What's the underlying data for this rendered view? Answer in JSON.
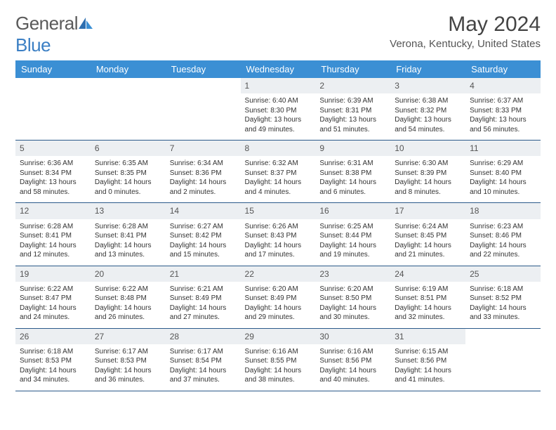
{
  "brand": {
    "general": "General",
    "blue": "Blue"
  },
  "title": "May 2024",
  "location": "Verona, Kentucky, United States",
  "colors": {
    "header_bg": "#3b8fd4",
    "header_text": "#ffffff",
    "daynum_bg": "#eceff2",
    "rule": "#2b5a8a",
    "logo_blue": "#3b7fc4"
  },
  "daysOfWeek": [
    "Sunday",
    "Monday",
    "Tuesday",
    "Wednesday",
    "Thursday",
    "Friday",
    "Saturday"
  ],
  "weeks": [
    [
      null,
      null,
      null,
      {
        "n": "1",
        "sr": "Sunrise: 6:40 AM",
        "ss": "Sunset: 8:30 PM",
        "d1": "Daylight: 13 hours",
        "d2": "and 49 minutes."
      },
      {
        "n": "2",
        "sr": "Sunrise: 6:39 AM",
        "ss": "Sunset: 8:31 PM",
        "d1": "Daylight: 13 hours",
        "d2": "and 51 minutes."
      },
      {
        "n": "3",
        "sr": "Sunrise: 6:38 AM",
        "ss": "Sunset: 8:32 PM",
        "d1": "Daylight: 13 hours",
        "d2": "and 54 minutes."
      },
      {
        "n": "4",
        "sr": "Sunrise: 6:37 AM",
        "ss": "Sunset: 8:33 PM",
        "d1": "Daylight: 13 hours",
        "d2": "and 56 minutes."
      }
    ],
    [
      {
        "n": "5",
        "sr": "Sunrise: 6:36 AM",
        "ss": "Sunset: 8:34 PM",
        "d1": "Daylight: 13 hours",
        "d2": "and 58 minutes."
      },
      {
        "n": "6",
        "sr": "Sunrise: 6:35 AM",
        "ss": "Sunset: 8:35 PM",
        "d1": "Daylight: 14 hours",
        "d2": "and 0 minutes."
      },
      {
        "n": "7",
        "sr": "Sunrise: 6:34 AM",
        "ss": "Sunset: 8:36 PM",
        "d1": "Daylight: 14 hours",
        "d2": "and 2 minutes."
      },
      {
        "n": "8",
        "sr": "Sunrise: 6:32 AM",
        "ss": "Sunset: 8:37 PM",
        "d1": "Daylight: 14 hours",
        "d2": "and 4 minutes."
      },
      {
        "n": "9",
        "sr": "Sunrise: 6:31 AM",
        "ss": "Sunset: 8:38 PM",
        "d1": "Daylight: 14 hours",
        "d2": "and 6 minutes."
      },
      {
        "n": "10",
        "sr": "Sunrise: 6:30 AM",
        "ss": "Sunset: 8:39 PM",
        "d1": "Daylight: 14 hours",
        "d2": "and 8 minutes."
      },
      {
        "n": "11",
        "sr": "Sunrise: 6:29 AM",
        "ss": "Sunset: 8:40 PM",
        "d1": "Daylight: 14 hours",
        "d2": "and 10 minutes."
      }
    ],
    [
      {
        "n": "12",
        "sr": "Sunrise: 6:28 AM",
        "ss": "Sunset: 8:41 PM",
        "d1": "Daylight: 14 hours",
        "d2": "and 12 minutes."
      },
      {
        "n": "13",
        "sr": "Sunrise: 6:28 AM",
        "ss": "Sunset: 8:41 PM",
        "d1": "Daylight: 14 hours",
        "d2": "and 13 minutes."
      },
      {
        "n": "14",
        "sr": "Sunrise: 6:27 AM",
        "ss": "Sunset: 8:42 PM",
        "d1": "Daylight: 14 hours",
        "d2": "and 15 minutes."
      },
      {
        "n": "15",
        "sr": "Sunrise: 6:26 AM",
        "ss": "Sunset: 8:43 PM",
        "d1": "Daylight: 14 hours",
        "d2": "and 17 minutes."
      },
      {
        "n": "16",
        "sr": "Sunrise: 6:25 AM",
        "ss": "Sunset: 8:44 PM",
        "d1": "Daylight: 14 hours",
        "d2": "and 19 minutes."
      },
      {
        "n": "17",
        "sr": "Sunrise: 6:24 AM",
        "ss": "Sunset: 8:45 PM",
        "d1": "Daylight: 14 hours",
        "d2": "and 21 minutes."
      },
      {
        "n": "18",
        "sr": "Sunrise: 6:23 AM",
        "ss": "Sunset: 8:46 PM",
        "d1": "Daylight: 14 hours",
        "d2": "and 22 minutes."
      }
    ],
    [
      {
        "n": "19",
        "sr": "Sunrise: 6:22 AM",
        "ss": "Sunset: 8:47 PM",
        "d1": "Daylight: 14 hours",
        "d2": "and 24 minutes."
      },
      {
        "n": "20",
        "sr": "Sunrise: 6:22 AM",
        "ss": "Sunset: 8:48 PM",
        "d1": "Daylight: 14 hours",
        "d2": "and 26 minutes."
      },
      {
        "n": "21",
        "sr": "Sunrise: 6:21 AM",
        "ss": "Sunset: 8:49 PM",
        "d1": "Daylight: 14 hours",
        "d2": "and 27 minutes."
      },
      {
        "n": "22",
        "sr": "Sunrise: 6:20 AM",
        "ss": "Sunset: 8:49 PM",
        "d1": "Daylight: 14 hours",
        "d2": "and 29 minutes."
      },
      {
        "n": "23",
        "sr": "Sunrise: 6:20 AM",
        "ss": "Sunset: 8:50 PM",
        "d1": "Daylight: 14 hours",
        "d2": "and 30 minutes."
      },
      {
        "n": "24",
        "sr": "Sunrise: 6:19 AM",
        "ss": "Sunset: 8:51 PM",
        "d1": "Daylight: 14 hours",
        "d2": "and 32 minutes."
      },
      {
        "n": "25",
        "sr": "Sunrise: 6:18 AM",
        "ss": "Sunset: 8:52 PM",
        "d1": "Daylight: 14 hours",
        "d2": "and 33 minutes."
      }
    ],
    [
      {
        "n": "26",
        "sr": "Sunrise: 6:18 AM",
        "ss": "Sunset: 8:53 PM",
        "d1": "Daylight: 14 hours",
        "d2": "and 34 minutes."
      },
      {
        "n": "27",
        "sr": "Sunrise: 6:17 AM",
        "ss": "Sunset: 8:53 PM",
        "d1": "Daylight: 14 hours",
        "d2": "and 36 minutes."
      },
      {
        "n": "28",
        "sr": "Sunrise: 6:17 AM",
        "ss": "Sunset: 8:54 PM",
        "d1": "Daylight: 14 hours",
        "d2": "and 37 minutes."
      },
      {
        "n": "29",
        "sr": "Sunrise: 6:16 AM",
        "ss": "Sunset: 8:55 PM",
        "d1": "Daylight: 14 hours",
        "d2": "and 38 minutes."
      },
      {
        "n": "30",
        "sr": "Sunrise: 6:16 AM",
        "ss": "Sunset: 8:56 PM",
        "d1": "Daylight: 14 hours",
        "d2": "and 40 minutes."
      },
      {
        "n": "31",
        "sr": "Sunrise: 6:15 AM",
        "ss": "Sunset: 8:56 PM",
        "d1": "Daylight: 14 hours",
        "d2": "and 41 minutes."
      },
      null
    ]
  ]
}
